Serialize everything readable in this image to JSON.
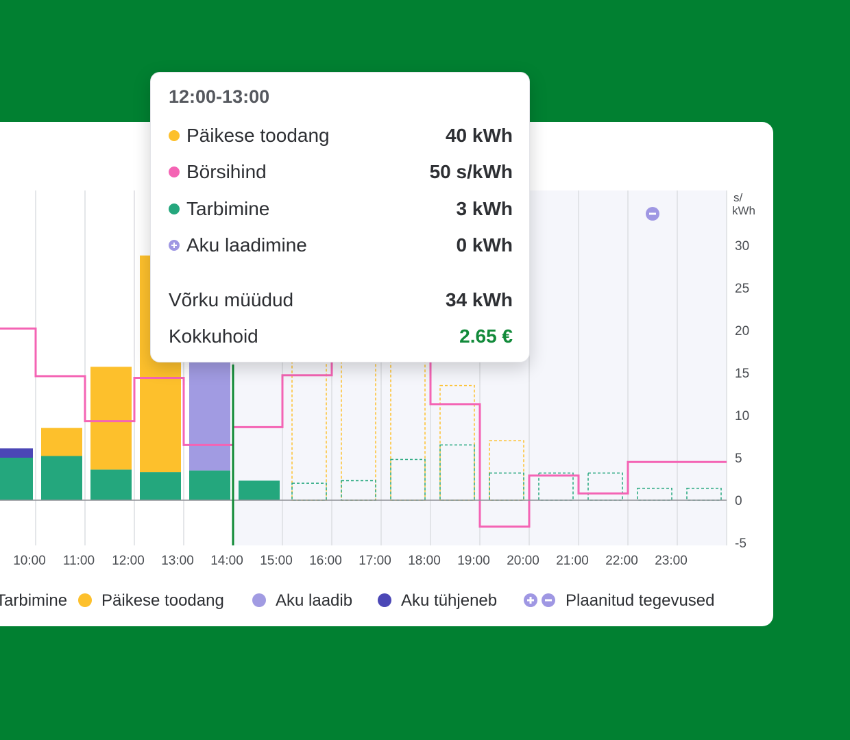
{
  "colors": {
    "background": "#018031",
    "consumption": "#24a77d",
    "solar": "#fdc02c",
    "battery_charging": "#a19be2",
    "battery_discharging": "#4b47b6",
    "price": "#f464b4",
    "planned": "#9f97e3",
    "now_line": "#0f8a35",
    "savings": "#128a3a"
  },
  "tooltip": {
    "title": "12:00-13:00",
    "rows": [
      {
        "icon": "yellow-dot-icon",
        "label": "Päikese toodang",
        "value": "40 kWh"
      },
      {
        "icon": "pink-dot-icon",
        "label": "Börsihind",
        "value": "50 s/kWh"
      },
      {
        "icon": "green-dot-icon",
        "label": "Tarbimine",
        "value": "3 kWh"
      },
      {
        "icon": "plus-circle-icon",
        "label": "Aku laadimine",
        "value": "0 kWh"
      }
    ],
    "sold_label": "Võrku müüdud",
    "sold_value": "34 kWh",
    "savings_label": "Kokkuhoid",
    "savings_value": "2.65 €"
  },
  "legend": [
    {
      "icon": "green-dot-icon",
      "label": "Tarbimine"
    },
    {
      "icon": "yellow-dot-icon",
      "label": "Päikese toodang"
    },
    {
      "icon": "light-purple-dot-icon",
      "label": "Aku laadib"
    },
    {
      "icon": "dark-purple-dot-icon",
      "label": "Aku tühjeneb"
    },
    {
      "icon": "plus-minus-icon",
      "label": "Plaanitud tegevused"
    }
  ],
  "chart_data": {
    "type": "bar",
    "x_ticks": [
      "10:00",
      "11:00",
      "12:00",
      "13:00",
      "14:00",
      "15:00",
      "16:00",
      "17:00",
      "18:00",
      "19:00",
      "20:00",
      "21:00",
      "22:00",
      "23:00"
    ],
    "y_unit": "s/\nkWh",
    "y_ticks": [
      30,
      25,
      20,
      15,
      10,
      5,
      0,
      -5
    ],
    "ylim": [
      -5,
      30
    ],
    "hours": [
      9,
      10,
      11,
      12,
      13,
      14,
      15,
      16,
      17,
      18,
      19,
      20,
      21,
      22,
      23
    ],
    "now_hour": 14,
    "series": [
      {
        "name": "Tarbimine",
        "values": [
          5,
          5.2,
          3.6,
          3.3,
          3.5,
          2.3,
          2.0,
          2.3,
          4.8,
          6.5,
          3.2,
          3.2,
          3.2,
          1.4,
          1.4
        ]
      },
      {
        "name": "Päikese toodang",
        "values": [
          0,
          3.3,
          12.1,
          25.5,
          0,
          0,
          0,
          0,
          0,
          6.9,
          3.7,
          0,
          0,
          0,
          0
        ]
      },
      {
        "name": "Aku laadib",
        "values": [
          0,
          0,
          0,
          0,
          15.5,
          0,
          0,
          0,
          0,
          0,
          0,
          0,
          0,
          0,
          0
        ]
      },
      {
        "name": "Aku tühjeneb",
        "values": [
          1.1,
          0,
          0,
          0,
          0,
          0,
          0,
          0,
          0,
          0,
          0,
          0,
          0,
          0,
          0
        ]
      }
    ],
    "forecast_solar": [
      null,
      null,
      null,
      null,
      null,
      16.0,
      16.5,
      16.5,
      17.0,
      13.5,
      7.0,
      0,
      0,
      0,
      0
    ],
    "price": [
      20.2,
      14.6,
      9.3,
      14.4,
      6.5,
      8.6,
      14.7,
      21,
      22,
      11.3,
      -3.1,
      2.9,
      0.8,
      4.5,
      4.5
    ],
    "planned_actions": [
      {
        "hour": 19,
        "action": "plus"
      },
      {
        "hour": 22,
        "action": "minus"
      }
    ]
  }
}
